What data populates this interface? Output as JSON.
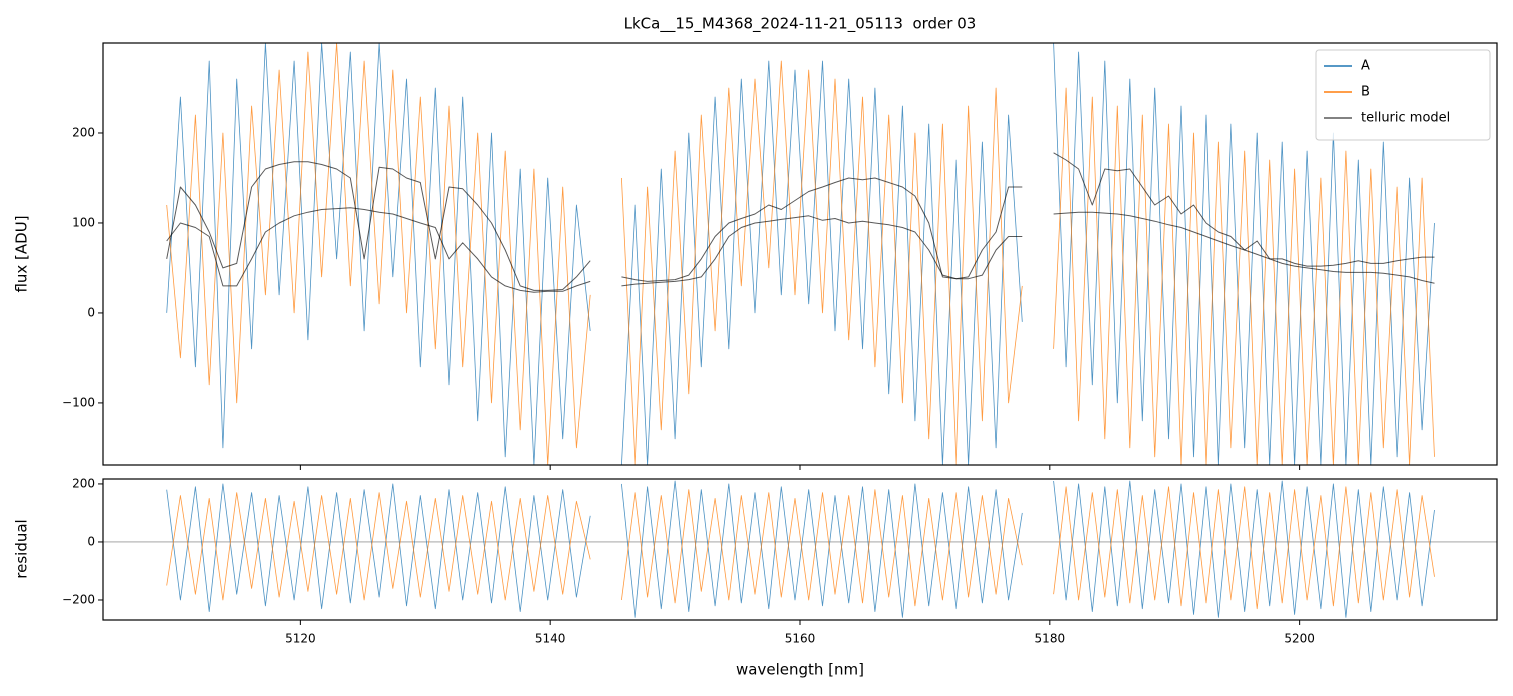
{
  "chart_data": [
    {
      "type": "line",
      "title": "LkCa__15_M4368_2024-11-21_05113  order 03",
      "ylabel": "flux [ADU]",
      "xlim": [
        5104.2,
        5215.8
      ],
      "ylim": [
        -169,
        300
      ],
      "xticks": [
        5120,
        5140,
        5160,
        5180,
        5200
      ],
      "yticks": [
        {
          "value": -100,
          "label": "−100"
        },
        0,
        100,
        200
      ],
      "legend": "upper right",
      "x": [
        5109.3,
        5110.4,
        5111.6,
        5112.7,
        5113.8,
        5114.9,
        5116.1,
        5117.2,
        5118.3,
        5119.5,
        5120.6,
        5121.7,
        5122.9,
        5124.0,
        5125.1,
        5126.3,
        5127.4,
        5128.5,
        5129.6,
        5130.8,
        5131.9,
        5133.0,
        5134.2,
        5135.3,
        5136.4,
        5137.6,
        5138.7,
        5139.8,
        5141.0,
        5142.1,
        5143.2,
        5144.5,
        5145.7,
        5146.8,
        5147.8,
        5148.9,
        5150.0,
        5151.1,
        5152.1,
        5153.2,
        5154.3,
        5155.3,
        5156.4,
        5157.5,
        5158.5,
        5159.6,
        5160.7,
        5161.8,
        5162.8,
        5163.9,
        5165.0,
        5166.0,
        5167.1,
        5168.2,
        5169.2,
        5170.3,
        5171.4,
        5172.5,
        5173.5,
        5174.6,
        5175.7,
        5176.7,
        5177.8,
        5179.0,
        5180.3,
        5181.3,
        5182.3,
        5183.4,
        5184.4,
        5185.4,
        5186.4,
        5187.4,
        5188.4,
        5189.5,
        5190.5,
        5191.5,
        5192.5,
        5193.5,
        5194.5,
        5195.6,
        5196.6,
        5197.6,
        5198.6,
        5199.6,
        5200.6,
        5201.7,
        5202.7,
        5203.7,
        5204.7,
        5205.7,
        5206.7,
        5207.8,
        5208.8,
        5209.8,
        5210.8
      ],
      "series": [
        {
          "name": "A",
          "color": "#1f77b4",
          "values": [
            0,
            240,
            -60,
            280,
            -150,
            260,
            -40,
            300,
            20,
            280,
            -30,
            300,
            60,
            290,
            -20,
            300,
            40,
            260,
            -60,
            250,
            -80,
            240,
            -120,
            200,
            -160,
            160,
            -169,
            150,
            -140,
            120,
            -20,
            null,
            -169,
            120,
            -169,
            160,
            -140,
            200,
            -60,
            240,
            -40,
            260,
            0,
            280,
            20,
            270,
            10,
            280,
            -20,
            260,
            -40,
            250,
            -90,
            230,
            -120,
            210,
            -169,
            170,
            -169,
            190,
            -150,
            220,
            -10,
            null,
            300,
            -60,
            290,
            -80,
            280,
            -100,
            260,
            -120,
            250,
            -140,
            230,
            -160,
            220,
            -169,
            210,
            -150,
            200,
            -169,
            190,
            -169,
            180,
            -169,
            200,
            -169,
            170,
            -169,
            190,
            -160,
            150,
            -130,
            100
          ]
        },
        {
          "name": "B",
          "color": "#ff7f0e",
          "values": [
            120,
            -50,
            220,
            -80,
            200,
            -100,
            230,
            20,
            270,
            0,
            290,
            40,
            300,
            30,
            280,
            10,
            270,
            0,
            240,
            -40,
            230,
            -60,
            200,
            -100,
            180,
            -130,
            160,
            -169,
            140,
            -150,
            20,
            null,
            150,
            -169,
            140,
            -130,
            180,
            -90,
            220,
            -20,
            250,
            30,
            260,
            50,
            280,
            20,
            270,
            0,
            260,
            -30,
            240,
            -60,
            220,
            -100,
            200,
            -140,
            210,
            -169,
            230,
            -120,
            250,
            -100,
            30,
            null,
            -40,
            250,
            -120,
            240,
            -140,
            230,
            -150,
            220,
            -160,
            210,
            -169,
            200,
            -169,
            190,
            -150,
            180,
            -169,
            170,
            -169,
            160,
            -169,
            150,
            -169,
            180,
            -169,
            160,
            -150,
            140,
            -169,
            150,
            -160
          ]
        },
        {
          "name": "telluric model",
          "color": "#000000",
          "values": [
            60,
            140,
            120,
            90,
            50,
            55,
            140,
            160,
            165,
            168,
            168,
            165,
            160,
            150,
            60,
            162,
            160,
            150,
            145,
            60,
            140,
            138,
            120,
            100,
            70,
            30,
            25,
            25,
            26,
            40,
            58,
            null,
            40,
            37,
            35,
            36,
            37,
            42,
            60,
            85,
            100,
            105,
            110,
            120,
            115,
            125,
            135,
            140,
            145,
            150,
            148,
            150,
            145,
            140,
            130,
            100,
            40,
            38,
            40,
            70,
            90,
            140,
            140,
            null,
            178,
            170,
            160,
            120,
            160,
            158,
            160,
            140,
            120,
            130,
            110,
            120,
            100,
            90,
            85,
            70,
            80,
            60,
            60,
            55,
            52,
            52,
            53,
            55,
            58,
            55,
            55,
            58,
            60,
            62,
            62
          ]
        },
        {
          "color": "#000000",
          "values": [
            80,
            100,
            95,
            85,
            30,
            30,
            60,
            90,
            100,
            108,
            112,
            115,
            116,
            117,
            115,
            112,
            110,
            105,
            100,
            95,
            60,
            78,
            60,
            40,
            30,
            25,
            23,
            24,
            24,
            30,
            35,
            null,
            30,
            32,
            33,
            34,
            35,
            37,
            40,
            60,
            85,
            95,
            100,
            102,
            104,
            106,
            108,
            103,
            105,
            100,
            102,
            100,
            98,
            95,
            90,
            70,
            42,
            38,
            38,
            42,
            70,
            85,
            85,
            null,
            110,
            111,
            112,
            112,
            111,
            110,
            108,
            105,
            102,
            98,
            95,
            90,
            85,
            80,
            75,
            70,
            65,
            60,
            55,
            52,
            50,
            48,
            46,
            45,
            45,
            45,
            44,
            42,
            40,
            36,
            33
          ]
        }
      ]
    },
    {
      "type": "line",
      "ylabel": "residual",
      "xlabel": "wavelength [nm]",
      "xlim": [
        5104.2,
        5215.8
      ],
      "ylim": [
        -269,
        217
      ],
      "xticks": [
        5120,
        5140,
        5160,
        5180,
        5200
      ],
      "yticks": [
        {
          "value": -200,
          "label": "−200"
        },
        0,
        200
      ],
      "x": [
        5109.3,
        5110.4,
        5111.6,
        5112.7,
        5113.8,
        5114.9,
        5116.1,
        5117.2,
        5118.3,
        5119.5,
        5120.6,
        5121.7,
        5122.9,
        5124.0,
        5125.1,
        5126.3,
        5127.4,
        5128.5,
        5129.6,
        5130.8,
        5131.9,
        5133.0,
        5134.2,
        5135.3,
        5136.4,
        5137.6,
        5138.7,
        5139.8,
        5141.0,
        5142.1,
        5143.2,
        5144.5,
        5145.7,
        5146.8,
        5147.8,
        5148.9,
        5150.0,
        5151.1,
        5152.1,
        5153.2,
        5154.3,
        5155.3,
        5156.4,
        5157.5,
        5158.5,
        5159.6,
        5160.7,
        5161.8,
        5162.8,
        5163.9,
        5165.0,
        5166.0,
        5167.1,
        5168.2,
        5169.2,
        5170.3,
        5171.4,
        5172.5,
        5173.5,
        5174.6,
        5175.7,
        5176.7,
        5177.8,
        5179.0,
        5180.3,
        5181.3,
        5182.3,
        5183.4,
        5184.4,
        5185.4,
        5186.4,
        5187.4,
        5188.4,
        5189.5,
        5190.5,
        5191.5,
        5192.5,
        5193.5,
        5194.5,
        5195.6,
        5196.6,
        5197.6,
        5198.6,
        5199.6,
        5200.6,
        5201.7,
        5202.7,
        5203.7,
        5204.7,
        5205.7,
        5206.7,
        5207.8,
        5208.8,
        5209.8,
        5210.8
      ],
      "series": [
        {
          "color": "#1f77b4",
          "values": [
            180,
            -200,
            190,
            -240,
            200,
            -180,
            170,
            -220,
            160,
            -200,
            190,
            -230,
            170,
            -210,
            180,
            -190,
            200,
            -220,
            160,
            -230,
            180,
            -200,
            170,
            -210,
            190,
            -240,
            160,
            -200,
            180,
            -190,
            90,
            null,
            200,
            -260,
            190,
            -230,
            210,
            -240,
            180,
            -220,
            200,
            -210,
            170,
            -230,
            190,
            -200,
            180,
            -220,
            160,
            -210,
            190,
            -240,
            180,
            -260,
            200,
            -220,
            170,
            -230,
            190,
            -210,
            180,
            -200,
            100,
            null,
            210,
            -200,
            200,
            -240,
            190,
            -220,
            210,
            -230,
            180,
            -210,
            200,
            -250,
            190,
            -260,
            200,
            -240,
            180,
            -220,
            210,
            -250,
            190,
            -230,
            200,
            -260,
            180,
            -240,
            190,
            -200,
            170,
            -220,
            110
          ]
        },
        {
          "color": "#ff7f0e",
          "values": [
            -150,
            160,
            -180,
            150,
            -200,
            170,
            -160,
            150,
            -190,
            140,
            -170,
            160,
            -180,
            150,
            -200,
            170,
            -160,
            140,
            -190,
            150,
            -170,
            160,
            -180,
            140,
            -200,
            150,
            -170,
            160,
            -180,
            140,
            -60,
            null,
            -200,
            170,
            -190,
            160,
            -210,
            180,
            -170,
            150,
            -200,
            160,
            -180,
            170,
            -190,
            150,
            -200,
            170,
            -180,
            160,
            -210,
            180,
            -190,
            160,
            -220,
            150,
            -200,
            170,
            -190,
            160,
            -180,
            150,
            -80,
            null,
            -180,
            190,
            -200,
            170,
            -190,
            180,
            -210,
            160,
            -200,
            190,
            -220,
            170,
            -210,
            180,
            -200,
            190,
            -230,
            170,
            -210,
            180,
            -200,
            160,
            -220,
            190,
            -210,
            170,
            -200,
            180,
            -190,
            160,
            -120
          ]
        }
      ]
    }
  ]
}
